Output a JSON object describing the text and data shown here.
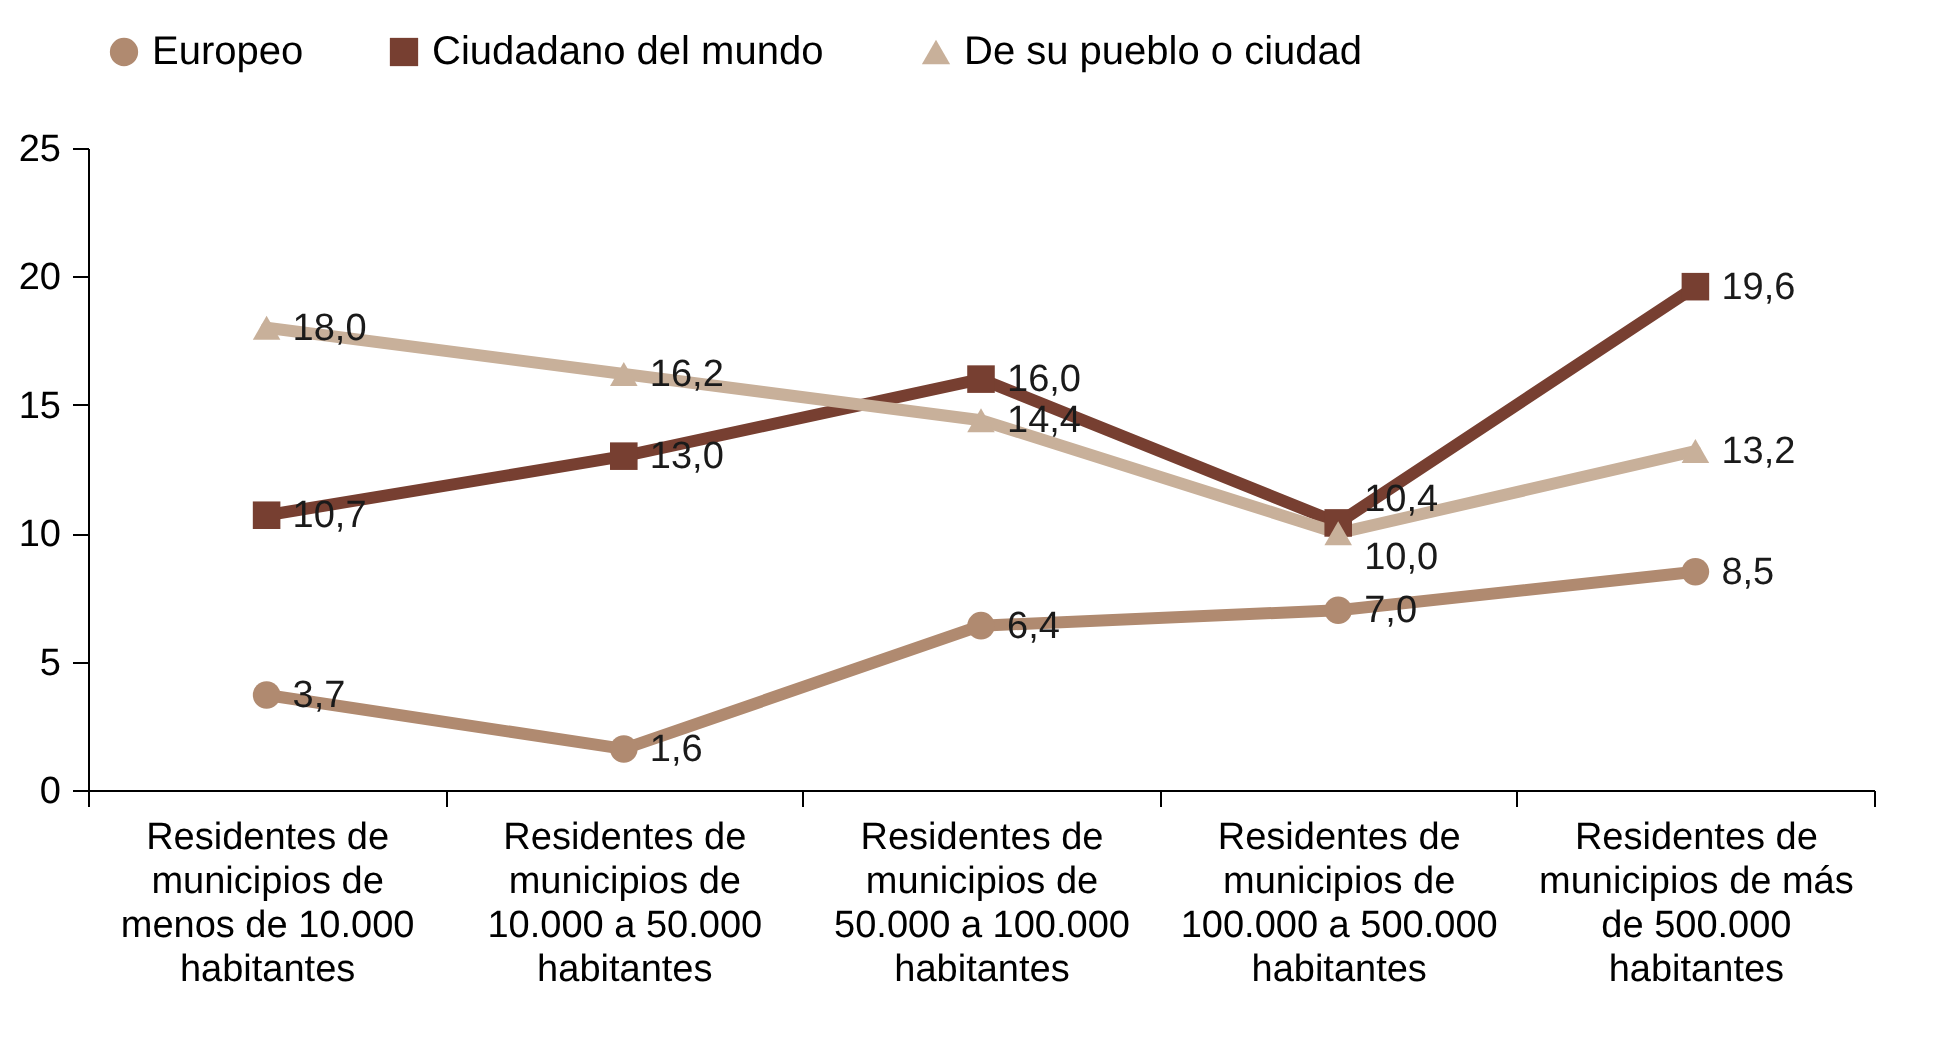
{
  "chart_data": {
    "type": "line",
    "categories": [
      "Residentes de municipios de menos de 10.000 habitantes",
      "Residentes de municipios de 10.000 a 50.000 habitantes",
      "Residentes de municipios de 50.000 a 100.000 habitantes",
      "Residentes de municipios de 100.000 a 500.000 habitantes",
      "Residentes de municipios de más de 500.000 habitantes"
    ],
    "series": [
      {
        "name": "Europeo",
        "color": "#b08a70",
        "marker": "circle",
        "values": [
          3.7,
          1.6,
          6.4,
          7.0,
          8.5
        ],
        "value_labels": [
          "3,7",
          "1,6",
          "6,4",
          "7,0",
          "8,5"
        ]
      },
      {
        "name": "Ciudadano  del mundo",
        "color": "#773f31",
        "marker": "square",
        "values": [
          10.7,
          13.0,
          16.0,
          10.4,
          19.6
        ],
        "value_labels": [
          "10,7",
          "13,0",
          "16,0",
          "10,4",
          "19,6"
        ]
      },
      {
        "name": "De su pueblo o ciudad",
        "color": "#c8b09a",
        "marker": "triangle",
        "values": [
          18.0,
          16.2,
          14.4,
          10.0,
          13.2
        ],
        "value_labels": [
          "18,0",
          "16,2",
          "14,4",
          "10,0",
          "13,2"
        ]
      }
    ],
    "ylim": [
      0,
      25
    ],
    "yticks": [
      0,
      5,
      10,
      15,
      20,
      25
    ],
    "grid": false,
    "legend": "top",
    "line_style": "solid"
  }
}
